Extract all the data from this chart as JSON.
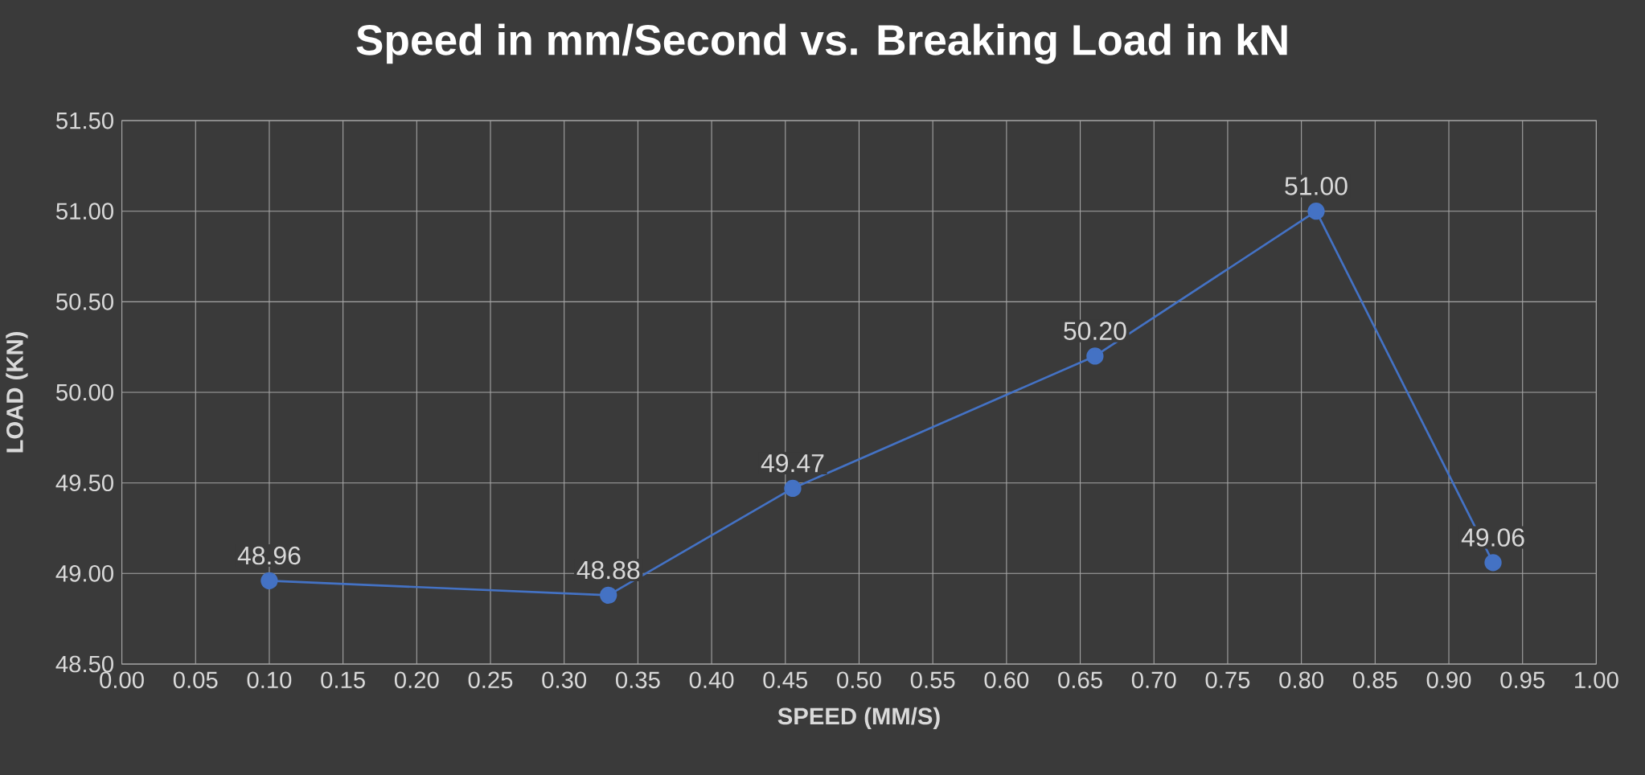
{
  "chart_data": {
    "type": "line",
    "title": "Speed in mm/Second vs. Breaking Load in kN",
    "xlabel": "SPEED (MM/S)",
    "ylabel": "LOAD (KN)",
    "x": [
      0.1,
      0.33,
      0.455,
      0.66,
      0.81,
      0.93
    ],
    "series": [
      {
        "color": "#4472c4",
        "values": [
          48.96,
          48.88,
          49.47,
          50.2,
          51.0,
          49.06
        ],
        "value_labels": [
          "48.96",
          "48.88",
          "49.47",
          "50.20",
          "51.00",
          "49.06"
        ]
      }
    ],
    "xlim": [
      0,
      1
    ],
    "ylim": [
      48.5,
      51.5
    ],
    "xticks": [
      {
        "value": 0,
        "label": "0.00"
      },
      {
        "value": 0.05,
        "label": "0.05"
      },
      {
        "value": 0.1,
        "label": "0.10"
      },
      {
        "value": 0.15,
        "label": "0.15"
      },
      {
        "value": 0.2,
        "label": "0.20"
      },
      {
        "value": 0.25,
        "label": "0.25"
      },
      {
        "value": 0.3,
        "label": "0.30"
      },
      {
        "value": 0.35,
        "label": "0.35"
      },
      {
        "value": 0.4,
        "label": "0.40"
      },
      {
        "value": 0.45,
        "label": "0.45"
      },
      {
        "value": 0.5,
        "label": "0.50"
      },
      {
        "value": 0.55,
        "label": "0.55"
      },
      {
        "value": 0.6,
        "label": "0.60"
      },
      {
        "value": 0.65,
        "label": "0.65"
      },
      {
        "value": 0.7,
        "label": "0.70"
      },
      {
        "value": 0.75,
        "label": "0.75"
      },
      {
        "value": 0.8,
        "label": "0.80"
      },
      {
        "value": 0.85,
        "label": "0.85"
      },
      {
        "value": 0.9,
        "label": "0.90"
      },
      {
        "value": 0.95,
        "label": "0.95"
      },
      {
        "value": 1,
        "label": "1.00"
      }
    ],
    "yticks": [
      {
        "value": 48.5,
        "label": "48.50"
      },
      {
        "value": 49,
        "label": "49.00"
      },
      {
        "value": 49.5,
        "label": "49.50"
      },
      {
        "value": 50,
        "label": "50.00"
      },
      {
        "value": 50.5,
        "label": "50.50"
      },
      {
        "value": 51,
        "label": "51.00"
      },
      {
        "value": 51.5,
        "label": "51.50"
      }
    ],
    "grid": true,
    "marker": "circle",
    "line_style": "solid"
  }
}
